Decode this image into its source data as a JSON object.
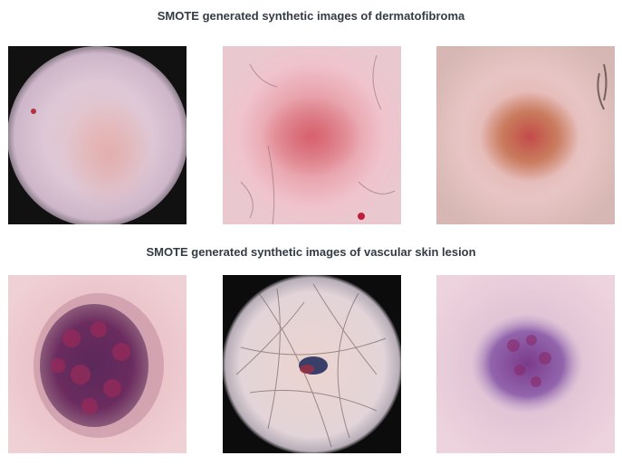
{
  "sections": [
    {
      "title": "SMOTE generated synthetic images of dermatofibroma",
      "images": [
        {
          "icon": "dermatofibroma-lesion-image-1"
        },
        {
          "icon": "dermatofibroma-lesion-image-2"
        },
        {
          "icon": "dermatofibroma-lesion-image-3"
        }
      ]
    },
    {
      "title": "SMOTE generated synthetic images of vascular skin lesion",
      "images": [
        {
          "icon": "vascular-lesion-image-1"
        },
        {
          "icon": "vascular-lesion-image-2"
        },
        {
          "icon": "vascular-lesion-image-3"
        }
      ]
    }
  ],
  "colors": {
    "title_text": "#333b44",
    "background": "#ffffff"
  }
}
